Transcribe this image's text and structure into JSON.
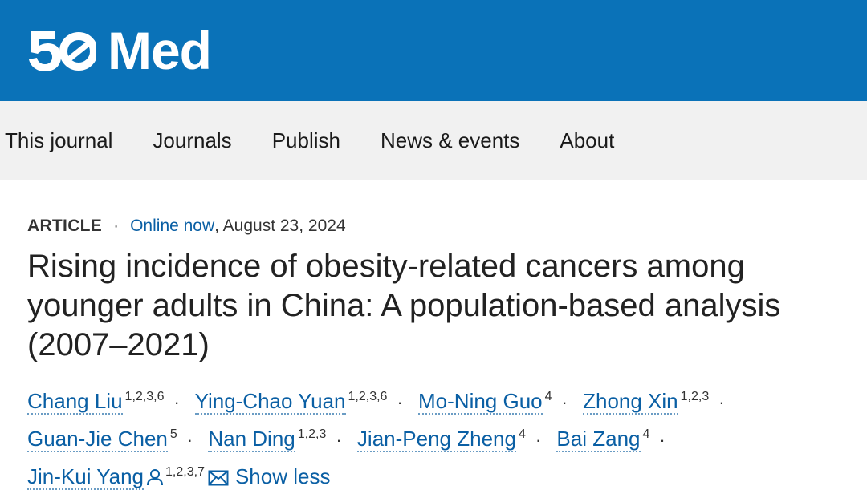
{
  "brand": {
    "logo_number": "50",
    "logo_word": "Med",
    "color": "#0a72b8"
  },
  "nav": {
    "items": [
      "This journal",
      "Journals",
      "Publish",
      "News & events",
      "About"
    ]
  },
  "article": {
    "type": "ARTICLE",
    "online_label": "Online now",
    "date": ", August 23, 2024",
    "title": "Rising incidence of obesity-related cancers among younger adults in China: A population-based analysis (2007–2021)",
    "authors": [
      {
        "name": "Chang Liu",
        "aff": "1,2,3,6"
      },
      {
        "name": "Ying-Chao Yuan",
        "aff": "1,2,3,6"
      },
      {
        "name": "Mo-Ning Guo",
        "aff": "4"
      },
      {
        "name": "Zhong Xin",
        "aff": "1,2,3"
      },
      {
        "name": "Guan-Jie Chen",
        "aff": "5"
      },
      {
        "name": "Nan Ding",
        "aff": "1,2,3"
      },
      {
        "name": "Jian-Peng Zheng",
        "aff": "4"
      },
      {
        "name": "Bai Zang",
        "aff": "4"
      },
      {
        "name": "Jin-Kui Yang",
        "aff": "1,2,3,7",
        "icons": [
          "person-icon",
          "email-icon"
        ]
      }
    ],
    "show_less_label": "Show less"
  }
}
